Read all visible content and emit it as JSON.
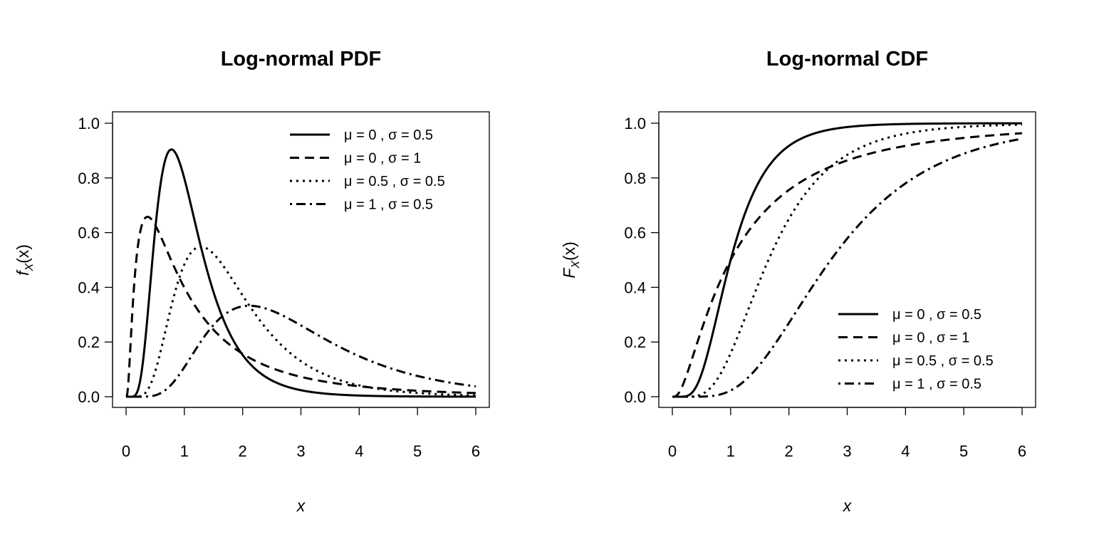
{
  "chart_data": [
    {
      "type": "line",
      "title": "Log-normal PDF",
      "xlabel": "x",
      "ylabel": {
        "main": "f",
        "sub": "X",
        "arg": "(x)"
      },
      "xlim": [
        0,
        6
      ],
      "ylim": [
        0,
        1
      ],
      "xticks": [
        "0",
        "1",
        "2",
        "3",
        "4",
        "5",
        "6"
      ],
      "yticks": [
        "0.0",
        "0.2",
        "0.4",
        "0.6",
        "0.8",
        "1.0"
      ],
      "function": "pdf",
      "legend_position": "top-right",
      "grid": false,
      "series": [
        {
          "name": "μ = 0 ,  σ = 0.5",
          "mu": 0,
          "sigma": 0.5,
          "linestyle": "solid"
        },
        {
          "name": "μ = 0 ,  σ = 1",
          "mu": 0,
          "sigma": 1,
          "linestyle": "dashed"
        },
        {
          "name": "μ = 0.5 ,  σ = 0.5",
          "mu": 0.5,
          "sigma": 0.5,
          "linestyle": "dotted"
        },
        {
          "name": "μ = 1 ,  σ = 0.5",
          "mu": 1,
          "sigma": 0.5,
          "linestyle": "dotdash"
        }
      ]
    },
    {
      "type": "line",
      "title": "Log-normal CDF",
      "xlabel": "x",
      "ylabel": {
        "main": "F",
        "sub": "X",
        "arg": "(x)"
      },
      "xlim": [
        0,
        6
      ],
      "ylim": [
        0,
        1
      ],
      "xticks": [
        "0",
        "1",
        "2",
        "3",
        "4",
        "5",
        "6"
      ],
      "yticks": [
        "0.0",
        "0.2",
        "0.4",
        "0.6",
        "0.8",
        "1.0"
      ],
      "function": "cdf",
      "legend_position": "bottom-right",
      "grid": false,
      "series": [
        {
          "name": "μ = 0 ,  σ = 0.5",
          "mu": 0,
          "sigma": 0.5,
          "linestyle": "solid"
        },
        {
          "name": "μ = 0 ,  σ = 1",
          "mu": 0,
          "sigma": 1,
          "linestyle": "dashed"
        },
        {
          "name": "μ = 0.5 ,  σ = 0.5",
          "mu": 0.5,
          "sigma": 0.5,
          "linestyle": "dotted"
        },
        {
          "name": "μ = 1 ,  σ = 0.5",
          "mu": 1,
          "sigma": 0.5,
          "linestyle": "dotdash"
        }
      ]
    }
  ]
}
